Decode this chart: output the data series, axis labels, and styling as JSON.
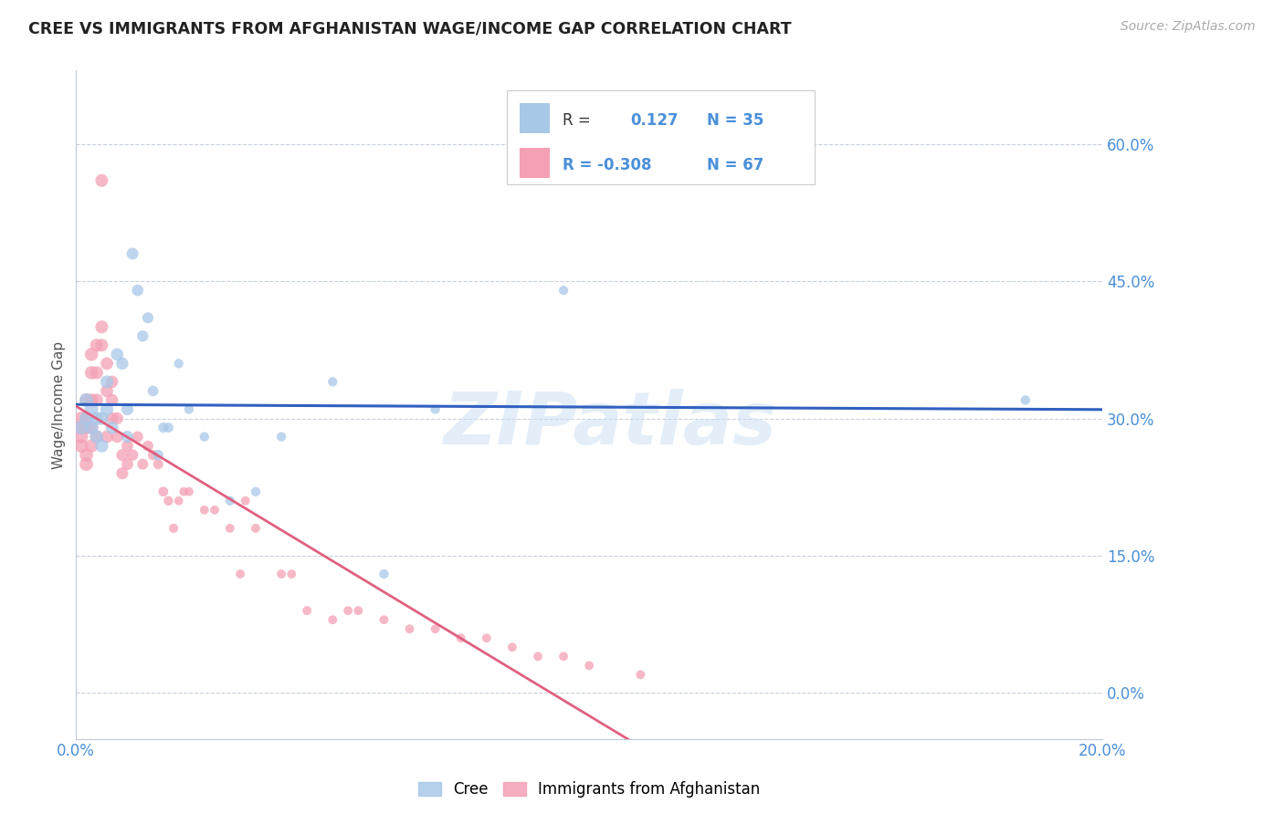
{
  "title": "CREE VS IMMIGRANTS FROM AFGHANISTAN WAGE/INCOME GAP CORRELATION CHART",
  "source": "Source: ZipAtlas.com",
  "ylabel": "Wage/Income Gap",
  "background_color": "#ffffff",
  "watermark": "ZIPatlas",
  "xlim": [
    0.0,
    0.2
  ],
  "ylim": [
    -0.05,
    0.68
  ],
  "yticks": [
    0.0,
    0.15,
    0.3,
    0.45,
    0.6
  ],
  "ytick_labels": [
    "0.0%",
    "15.0%",
    "30.0%",
    "45.0%",
    "60.0%"
  ],
  "xticks": [
    0.0,
    0.05,
    0.1,
    0.15,
    0.2
  ],
  "xtick_labels": [
    "0.0%",
    "",
    "",
    "",
    "20.0%"
  ],
  "cree_color": "#a8c8e8",
  "afg_color": "#f4a0b5",
  "cree_line_color": "#3060c0",
  "afg_line_color": "#e06080",
  "tick_label_color": "#4a90d9",
  "legend_r1": "R =",
  "legend_v1": "0.127",
  "legend_n1": "N = 35",
  "legend_r2": "R = -0.308",
  "legend_n2": "N = 67",
  "cree_points": [
    [
      0.001,
      0.29
    ],
    [
      0.002,
      0.3
    ],
    [
      0.002,
      0.32
    ],
    [
      0.003,
      0.29
    ],
    [
      0.003,
      0.31
    ],
    [
      0.004,
      0.3
    ],
    [
      0.004,
      0.28
    ],
    [
      0.005,
      0.3
    ],
    [
      0.005,
      0.27
    ],
    [
      0.006,
      0.31
    ],
    [
      0.006,
      0.34
    ],
    [
      0.007,
      0.29
    ],
    [
      0.008,
      0.37
    ],
    [
      0.009,
      0.36
    ],
    [
      0.01,
      0.31
    ],
    [
      0.01,
      0.28
    ],
    [
      0.011,
      0.48
    ],
    [
      0.012,
      0.44
    ],
    [
      0.013,
      0.39
    ],
    [
      0.014,
      0.41
    ],
    [
      0.015,
      0.33
    ],
    [
      0.016,
      0.26
    ],
    [
      0.017,
      0.29
    ],
    [
      0.018,
      0.29
    ],
    [
      0.02,
      0.36
    ],
    [
      0.022,
      0.31
    ],
    [
      0.025,
      0.28
    ],
    [
      0.03,
      0.21
    ],
    [
      0.035,
      0.22
    ],
    [
      0.04,
      0.28
    ],
    [
      0.05,
      0.34
    ],
    [
      0.06,
      0.13
    ],
    [
      0.07,
      0.31
    ],
    [
      0.095,
      0.44
    ],
    [
      0.185,
      0.32
    ]
  ],
  "afg_points": [
    [
      0.001,
      0.3
    ],
    [
      0.001,
      0.29
    ],
    [
      0.001,
      0.28
    ],
    [
      0.001,
      0.27
    ],
    [
      0.002,
      0.32
    ],
    [
      0.002,
      0.3
    ],
    [
      0.002,
      0.29
    ],
    [
      0.002,
      0.26
    ],
    [
      0.002,
      0.25
    ],
    [
      0.003,
      0.37
    ],
    [
      0.003,
      0.35
    ],
    [
      0.003,
      0.32
    ],
    [
      0.003,
      0.29
    ],
    [
      0.003,
      0.27
    ],
    [
      0.004,
      0.38
    ],
    [
      0.004,
      0.35
    ],
    [
      0.004,
      0.32
    ],
    [
      0.004,
      0.28
    ],
    [
      0.005,
      0.4
    ],
    [
      0.005,
      0.38
    ],
    [
      0.005,
      0.56
    ],
    [
      0.006,
      0.36
    ],
    [
      0.006,
      0.33
    ],
    [
      0.006,
      0.28
    ],
    [
      0.007,
      0.34
    ],
    [
      0.007,
      0.32
    ],
    [
      0.007,
      0.3
    ],
    [
      0.008,
      0.3
    ],
    [
      0.008,
      0.28
    ],
    [
      0.009,
      0.26
    ],
    [
      0.009,
      0.24
    ],
    [
      0.01,
      0.25
    ],
    [
      0.01,
      0.27
    ],
    [
      0.011,
      0.26
    ],
    [
      0.012,
      0.28
    ],
    [
      0.013,
      0.25
    ],
    [
      0.014,
      0.27
    ],
    [
      0.015,
      0.26
    ],
    [
      0.016,
      0.25
    ],
    [
      0.017,
      0.22
    ],
    [
      0.018,
      0.21
    ],
    [
      0.019,
      0.18
    ],
    [
      0.02,
      0.21
    ],
    [
      0.021,
      0.22
    ],
    [
      0.022,
      0.22
    ],
    [
      0.025,
      0.2
    ],
    [
      0.027,
      0.2
    ],
    [
      0.03,
      0.18
    ],
    [
      0.032,
      0.13
    ],
    [
      0.033,
      0.21
    ],
    [
      0.035,
      0.18
    ],
    [
      0.04,
      0.13
    ],
    [
      0.042,
      0.13
    ],
    [
      0.045,
      0.09
    ],
    [
      0.05,
      0.08
    ],
    [
      0.053,
      0.09
    ],
    [
      0.055,
      0.09
    ],
    [
      0.06,
      0.08
    ],
    [
      0.065,
      0.07
    ],
    [
      0.07,
      0.07
    ],
    [
      0.075,
      0.06
    ],
    [
      0.08,
      0.06
    ],
    [
      0.085,
      0.05
    ],
    [
      0.09,
      0.04
    ],
    [
      0.095,
      0.04
    ],
    [
      0.1,
      0.03
    ],
    [
      0.11,
      0.02
    ]
  ]
}
